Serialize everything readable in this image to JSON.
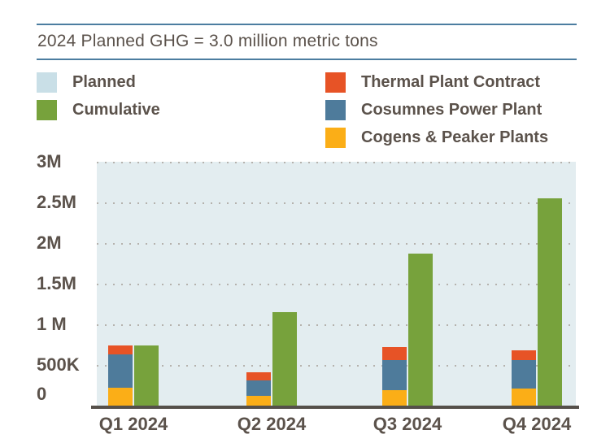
{
  "title": "2024 Planned GHG = 3.0 million metric tons",
  "legend": {
    "left": [
      {
        "id": "planned",
        "label": "Planned",
        "color": "#c9dfe7"
      },
      {
        "id": "cumulative",
        "label": "Cumulative",
        "color": "#77a23c"
      }
    ],
    "right": [
      {
        "id": "thermal",
        "label": "Thermal Plant Contract",
        "color": "#e75326"
      },
      {
        "id": "cosumnes",
        "label": "Cosumnes Power Plant",
        "color": "#4e7b9b"
      },
      {
        "id": "cogens",
        "label": "Cogens & Peaker Plants",
        "color": "#fbae17"
      }
    ]
  },
  "chart_data": {
    "type": "bar",
    "title": "2024 Planned GHG = 3.0 million metric tons",
    "units": "million metric tons",
    "categories": [
      "Q1 2024",
      "Q2 2024",
      "Q3 2024",
      "Q4 2024"
    ],
    "stacked_series": [
      {
        "id": "cogens",
        "name": "Cogens & Peaker Plants",
        "color": "#fbae17",
        "values": [
          0.22,
          0.12,
          0.19,
          0.21
        ]
      },
      {
        "id": "cosumnes",
        "name": "Cosumnes Power Plant",
        "color": "#4e7b9b",
        "values": [
          0.41,
          0.19,
          0.37,
          0.35
        ]
      },
      {
        "id": "thermal",
        "name": "Thermal Plant Contract",
        "color": "#e75326",
        "values": [
          0.11,
          0.1,
          0.16,
          0.12
        ]
      }
    ],
    "cumulative_series": {
      "id": "cumulative",
      "name": "Cumulative",
      "color": "#77a23c",
      "values": [
        0.74,
        1.15,
        1.87,
        2.55
      ]
    },
    "planned_band": {
      "name": "Planned",
      "value": 3.0,
      "color": "#e3edf0"
    },
    "y_ticks": [
      {
        "label": "3M",
        "value": 3.0
      },
      {
        "label": "2.5M",
        "value": 2.5
      },
      {
        "label": "2M",
        "value": 2.0
      },
      {
        "label": "1.5M",
        "value": 1.5
      },
      {
        "label": "1 M",
        "value": 1.0
      },
      {
        "label": "500K",
        "value": 0.5
      },
      {
        "label": "0",
        "value": 0.0
      }
    ],
    "ylim": [
      0,
      3
    ],
    "grid": "dotted-horizontal",
    "legend_position": "top"
  },
  "colors": {
    "text": "#5b524b",
    "rule": "#4c7da0",
    "axis_line": "#55504a",
    "grid_dot": "#a59e97",
    "plot_background": "#e3edf0"
  }
}
